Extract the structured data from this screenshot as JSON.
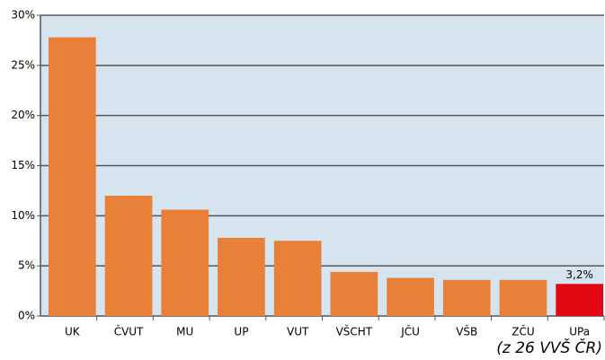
{
  "chart_data": {
    "type": "bar",
    "categories": [
      "UK",
      "ČVUT",
      "MU",
      "UP",
      "VUT",
      "VŠCHT",
      "JČU",
      "VŠB",
      "ZČU",
      "UPa"
    ],
    "values": [
      27.8,
      12.0,
      10.6,
      7.8,
      7.5,
      4.4,
      3.8,
      3.6,
      3.6,
      3.2
    ],
    "value_labels": [
      null,
      null,
      null,
      null,
      null,
      null,
      null,
      null,
      null,
      "3,2%"
    ],
    "colors": [
      "#e8803a",
      "#e8803a",
      "#e8803a",
      "#e8803a",
      "#e8803a",
      "#e8803a",
      "#e8803a",
      "#e8803a",
      "#e8803a",
      "#e30613"
    ],
    "ylim": [
      0,
      30
    ],
    "yticks": [
      {
        "value": 0,
        "label": "0%"
      },
      {
        "value": 5,
        "label": "5%"
      },
      {
        "value": 10,
        "label": "10%"
      },
      {
        "value": 15,
        "label": "15%"
      },
      {
        "value": 20,
        "label": "20%"
      },
      {
        "value": 25,
        "label": "25%"
      },
      {
        "value": 30,
        "label": "30%"
      }
    ],
    "grid": true,
    "annotation": "(z 26 VVŠ ČR)"
  }
}
